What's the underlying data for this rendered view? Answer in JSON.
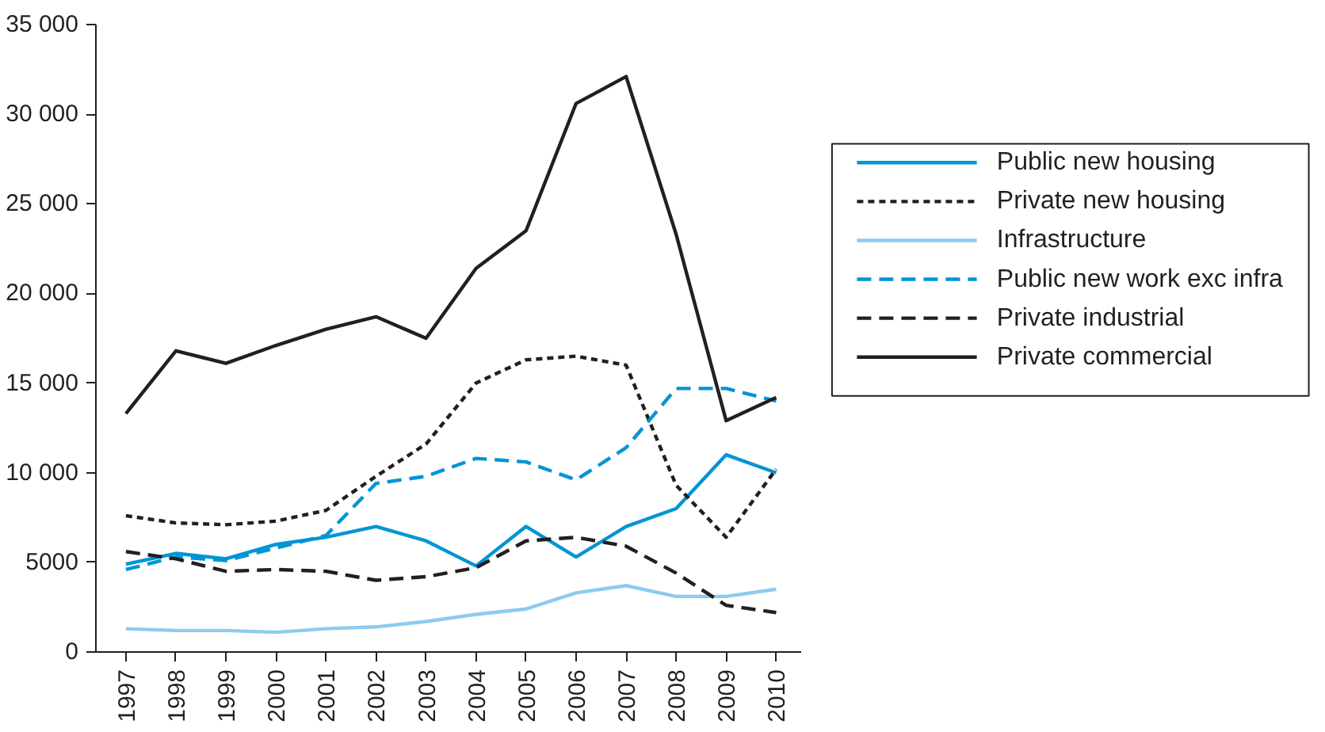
{
  "chart_data": {
    "type": "line",
    "x": [
      1997,
      1998,
      1999,
      2000,
      2001,
      2002,
      2003,
      2004,
      2005,
      2006,
      2007,
      2008,
      2009,
      2010
    ],
    "xlim": [
      1996.4,
      2010.5
    ],
    "xticks": [
      1997,
      1998,
      1999,
      2000,
      2001,
      2002,
      2003,
      2004,
      2005,
      2006,
      2007,
      2008,
      2009,
      2010
    ],
    "ylim": [
      0,
      35000
    ],
    "yticks": [
      0,
      5000,
      {
        "value": 10000,
        "label": "10 000"
      },
      {
        "value": 15000,
        "label": "15 000"
      },
      {
        "value": 20000,
        "label": "20 000"
      },
      {
        "value": 25000,
        "label": "25 000"
      },
      {
        "value": 30000,
        "label": "30 000"
      },
      {
        "value": 35000,
        "label": "35 000"
      }
    ],
    "grid": false,
    "legend": "right",
    "marker": "none",
    "series": [
      {
        "name": "Public new housing",
        "color": "#0095d5",
        "line_style": "solid",
        "values": [
          4900,
          5500,
          5200,
          6000,
          6400,
          7000,
          6200,
          4800,
          7000,
          5300,
          7000,
          8000,
          11000,
          10000
        ]
      },
      {
        "name": "Private new housing",
        "color": "#231f20",
        "line_style": "dotted",
        "values": [
          7600,
          7200,
          7100,
          7300,
          7900,
          9800,
          11600,
          15000,
          16300,
          16500,
          16000,
          9300,
          6400,
          10200
        ]
      },
      {
        "name": "Infrastructure",
        "color": "#8dcbef",
        "line_style": "solid",
        "values": [
          1300,
          1200,
          1200,
          1100,
          1300,
          1400,
          1700,
          2100,
          2400,
          3300,
          3700,
          3100,
          3100,
          3500
        ]
      },
      {
        "name": "Public new work exc infra",
        "color": "#0095d5",
        "line_style": "dashed",
        "values": [
          4600,
          5300,
          5100,
          5800,
          6500,
          9400,
          9800,
          10800,
          10600,
          9600,
          11400,
          14700,
          14700,
          14000
        ]
      },
      {
        "name": "Private industrial",
        "color": "#231f20",
        "line_style": "dashed",
        "values": [
          5600,
          5200,
          4500,
          4600,
          4500,
          4000,
          4200,
          4700,
          6200,
          6400,
          5900,
          4400,
          2600,
          2200
        ]
      },
      {
        "name": "Private commercial",
        "color": "#231f20",
        "line_style": "solid",
        "values": [
          13300,
          16800,
          16100,
          17100,
          18000,
          18700,
          17500,
          21400,
          23500,
          30600,
          32100,
          23300,
          12900,
          14200
        ]
      }
    ]
  }
}
